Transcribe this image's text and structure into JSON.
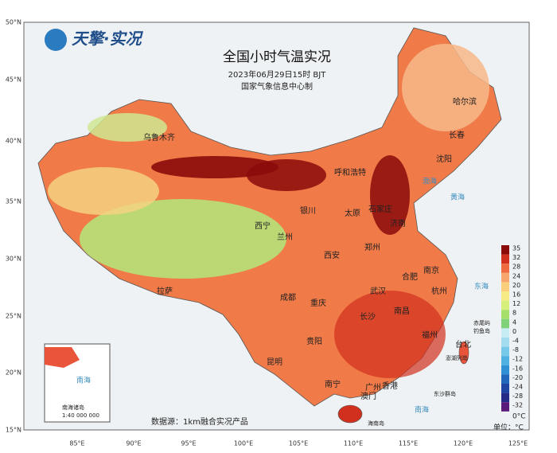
{
  "header": {
    "logo": "天擎·实况",
    "title": "全国小时气温实况",
    "time": "2023年06月29日15时 BJT",
    "producer": "国家气象信息中心制"
  },
  "axes": {
    "lat_labels": [
      "50°N",
      "45°N",
      "40°N",
      "35°N",
      "30°N",
      "25°N",
      "20°N",
      "15°N"
    ],
    "lon_labels": [
      "85°E",
      "90°E",
      "95°E",
      "100°E",
      "105°E",
      "110°E",
      "115°E",
      "120°E",
      "125°E"
    ]
  },
  "cities": [
    "乌鲁木齐",
    "呼和浩特",
    "哈尔滨",
    "长春",
    "沈阳",
    "石家庄",
    "太原",
    "济南",
    "银川",
    "西宁",
    "兰州",
    "西安",
    "郑州",
    "南京",
    "合肥",
    "拉萨",
    "成都",
    "重庆",
    "武汉",
    "杭州",
    "长沙",
    "南昌",
    "贵阳",
    "福州",
    "台北",
    "昆明",
    "南宁",
    "广州",
    "香港",
    "澳门"
  ],
  "seas": [
    "渤海",
    "黄海",
    "东海",
    "南海"
  ],
  "islands": [
    "赤尾屿",
    "钓鱼岛",
    "澎湖列岛",
    "东沙群岛",
    "海南岛"
  ],
  "inset": {
    "label": "南海诸岛",
    "scale": "1:40 000 000",
    "sea": "南海"
  },
  "legend": {
    "unit": "单位：°C",
    "bottom_label": "0°C",
    "items": [
      {
        "label": "35",
        "color": "#8b0a0a"
      },
      {
        "label": "32",
        "color": "#d2301e"
      },
      {
        "label": "28",
        "color": "#f06a40"
      },
      {
        "label": "24",
        "color": "#f7a66e"
      },
      {
        "label": "20",
        "color": "#f9cf7c"
      },
      {
        "label": "16",
        "color": "#f5ec86"
      },
      {
        "label": "12",
        "color": "#d6ef7d"
      },
      {
        "label": "8",
        "color": "#a6e06a"
      },
      {
        "label": "4",
        "color": "#7fd27a"
      },
      {
        "label": "0",
        "color": "#c8ecf4"
      },
      {
        "label": "-4",
        "color": "#a3dcef"
      },
      {
        "label": "-8",
        "color": "#78c8ea"
      },
      {
        "label": "-12",
        "color": "#4fb1e2"
      },
      {
        "label": "-16",
        "color": "#2f90d4"
      },
      {
        "label": "-20",
        "color": "#2168bd"
      },
      {
        "label": "-24",
        "color": "#1e45a2"
      },
      {
        "label": "-28",
        "color": "#232b86"
      },
      {
        "label": "-32",
        "color": "#5a1a7a"
      }
    ]
  },
  "source": "数据源：1km融合实况产品"
}
